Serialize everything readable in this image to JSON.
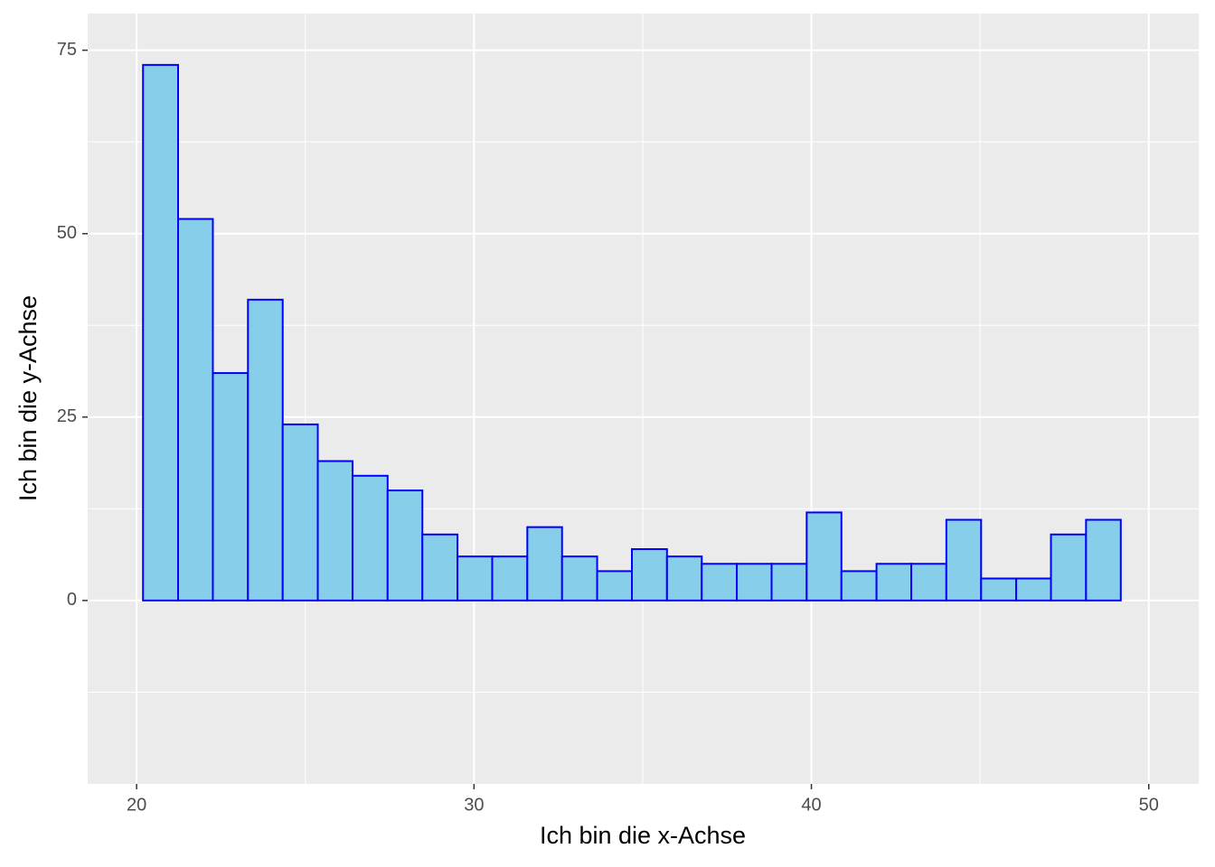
{
  "chart_data": {
    "type": "histogram",
    "xlabel": "Ich bin die x-Achse",
    "ylabel": "Ich bin die y-Achse",
    "bins": [
      20.19,
      21.23,
      22.26,
      23.3,
      24.33,
      25.37,
      26.4,
      27.44,
      28.47,
      29.51,
      30.54,
      31.58,
      32.61,
      33.65,
      34.68,
      35.72,
      36.75,
      37.79,
      38.82,
      39.86,
      40.89,
      41.93,
      42.96,
      44.0,
      45.03,
      46.07,
      47.1,
      48.14,
      49.17
    ],
    "values": [
      73,
      52,
      31,
      41,
      24,
      19,
      17,
      15,
      9,
      6,
      6,
      10,
      6,
      4,
      7,
      6,
      5,
      5,
      5,
      12,
      4,
      5,
      5,
      11,
      3,
      3,
      9,
      11
    ],
    "color": "#87ceeb",
    "edgecolor": "#0000ff",
    "xlim": [
      18.55,
      51.48
    ],
    "ylim": [
      -25,
      80
    ],
    "xticks": [
      20,
      30,
      40,
      50
    ],
    "yticks": [
      0,
      25,
      50,
      75
    ],
    "grid": true
  }
}
